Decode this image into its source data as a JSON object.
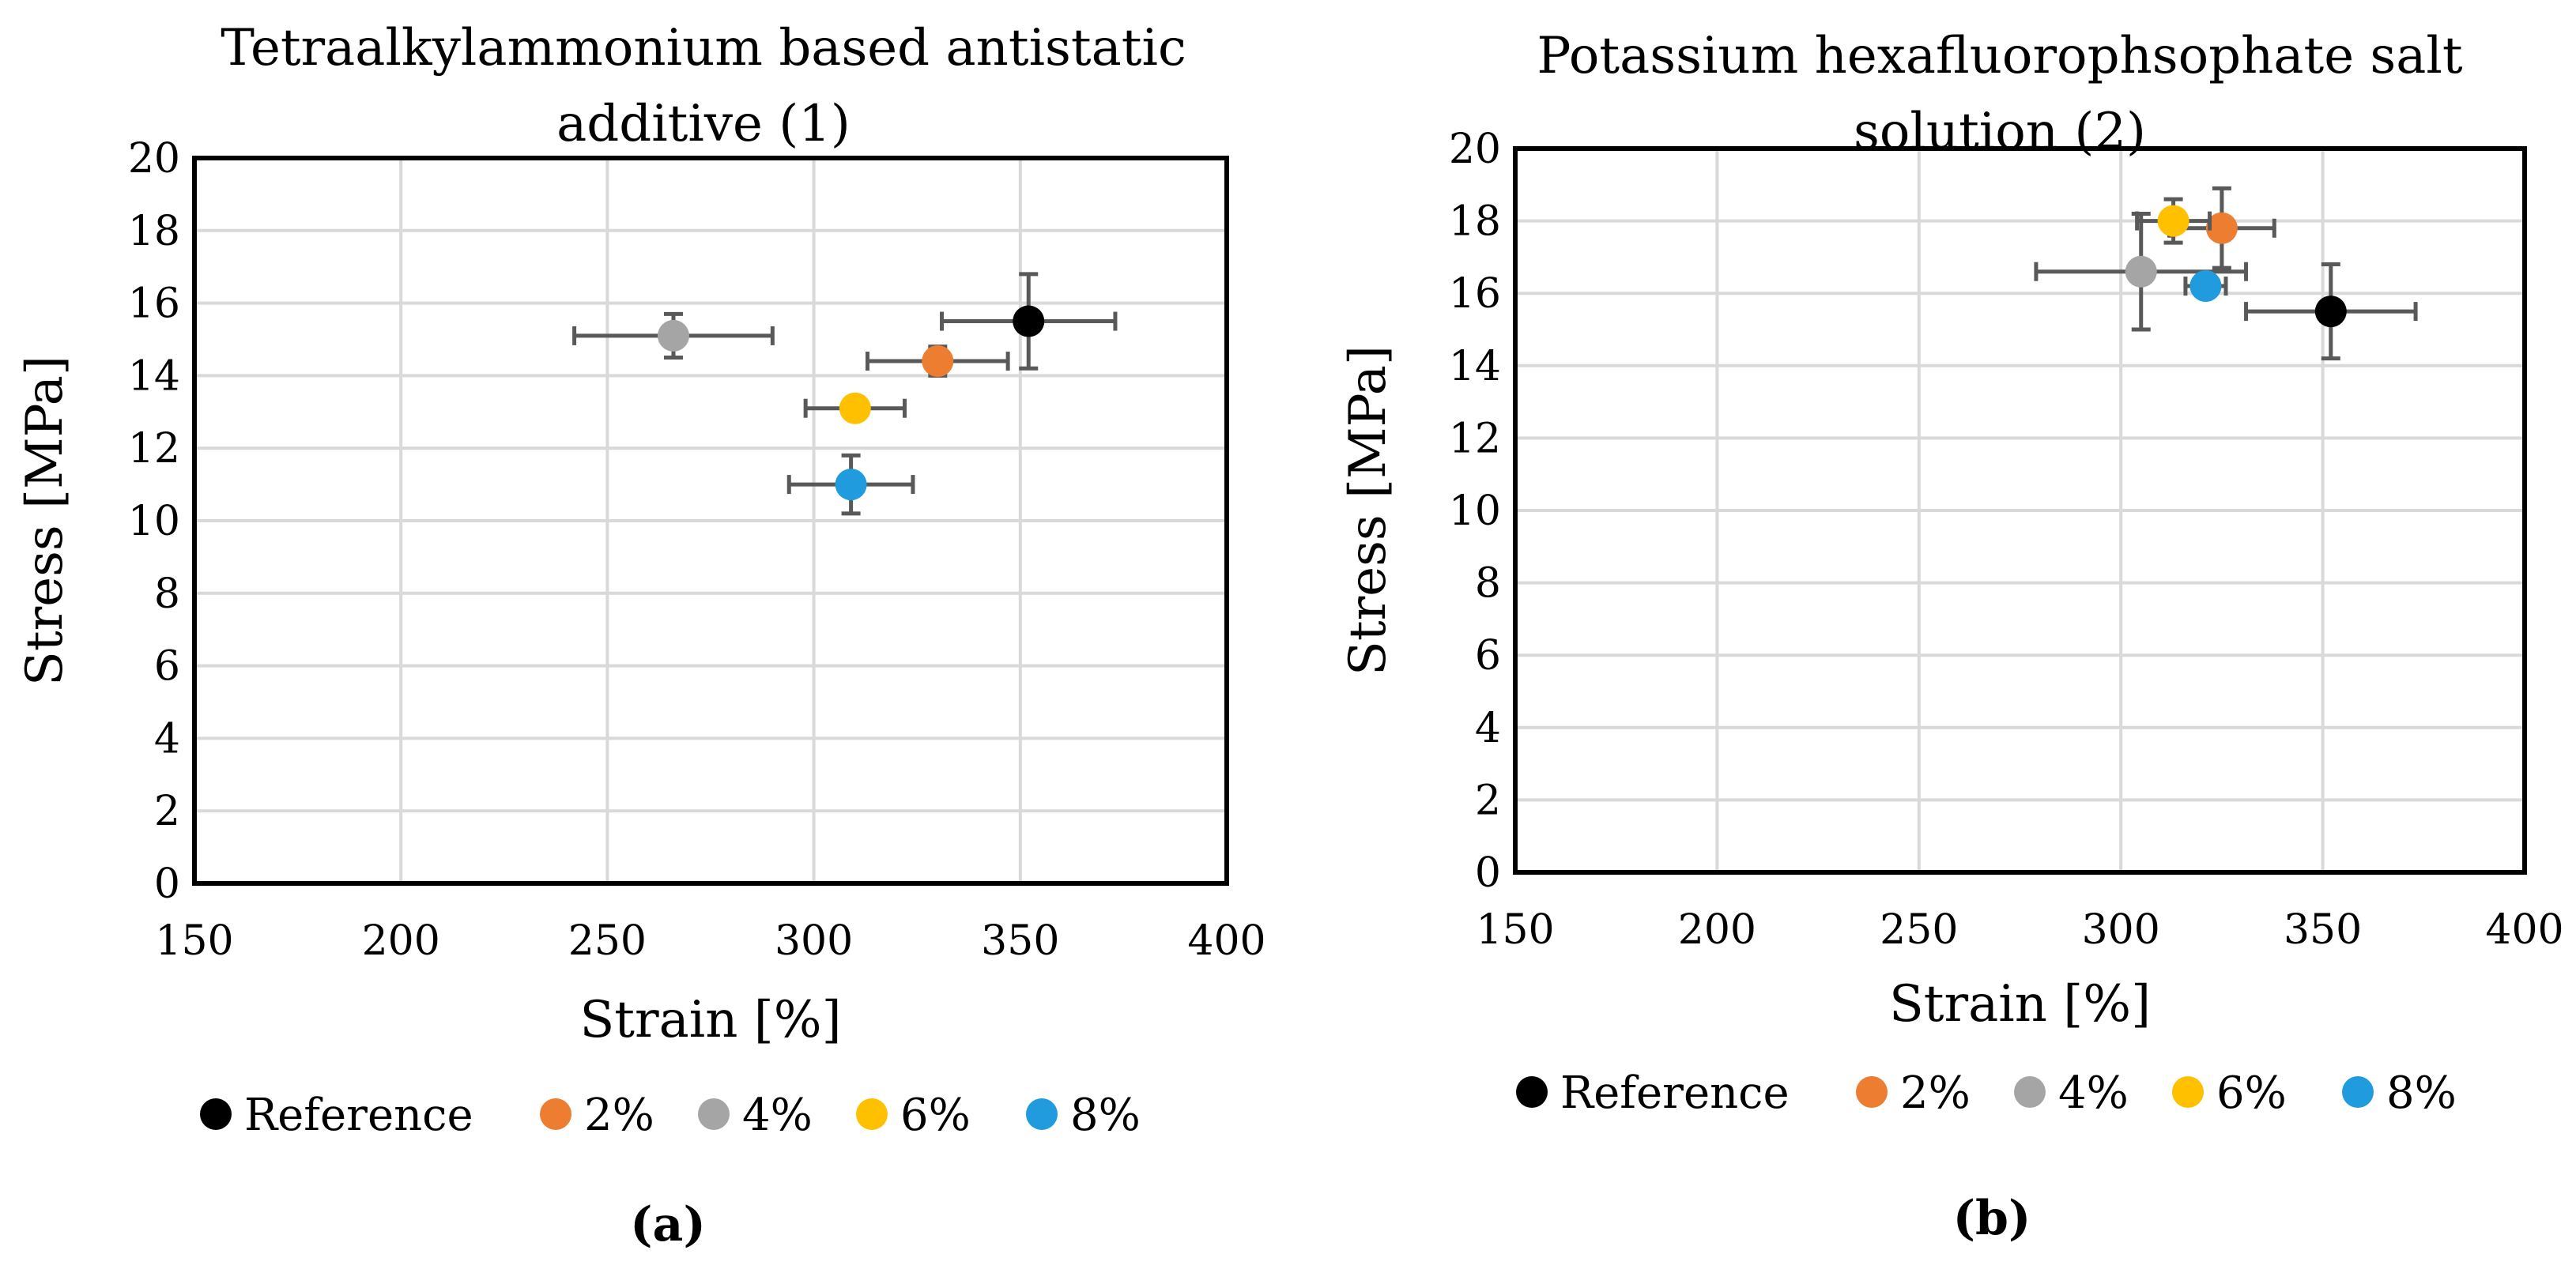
{
  "chart_data": [
    {
      "type": "scatter",
      "title": "Tetraalkylammonium based antistatic additive (1)",
      "title_lines": [
        "Tetraalkylammonium based antistatic",
        "additive (1)"
      ],
      "xlabel": "Strain [%]",
      "ylabel": "Stress [MPa]",
      "xlim": [
        150,
        400
      ],
      "ylim": [
        0,
        20
      ],
      "xticks": [
        150,
        200,
        250,
        300,
        350,
        400
      ],
      "yticks": [
        0,
        2,
        4,
        6,
        8,
        10,
        12,
        14,
        16,
        18,
        20
      ],
      "grid": true,
      "caption": "(a)",
      "series": [
        {
          "name": "Reference",
          "color": "#000000",
          "x": 352,
          "y": 15.5,
          "xerr": 21,
          "yerr": 1.3
        },
        {
          "name": "2%",
          "color": "#ED7D31",
          "x": 330,
          "y": 14.4,
          "xerr": 17,
          "yerr": 0.4
        },
        {
          "name": "4%",
          "color": "#A5A5A5",
          "x": 266,
          "y": 15.1,
          "xerr": 24,
          "yerr": 0.6
        },
        {
          "name": "6%",
          "color": "#FFC000",
          "x": 310,
          "y": 13.1,
          "xerr": 12,
          "yerr": 0.3
        },
        {
          "name": "8%",
          "color": "#1F9BDE",
          "x": 309,
          "y": 11.0,
          "xerr": 15,
          "yerr": 0.8
        }
      ]
    },
    {
      "type": "scatter",
      "title": "Potassium hexafluorophsophate salt solution (2)",
      "title_lines": [
        "Potassium hexafluorophsophate salt",
        "solution (2)"
      ],
      "xlabel": "Strain [%]",
      "ylabel": "Stress [MPa]",
      "xlim": [
        150,
        400
      ],
      "ylim": [
        0,
        20
      ],
      "xticks": [
        150,
        200,
        250,
        300,
        350,
        400
      ],
      "yticks": [
        0,
        2,
        4,
        6,
        8,
        10,
        12,
        14,
        16,
        18,
        20
      ],
      "grid": true,
      "caption": "(b)",
      "series": [
        {
          "name": "Reference",
          "color": "#000000",
          "x": 352,
          "y": 15.5,
          "xerr": 21,
          "yerr": 1.3
        },
        {
          "name": "2%",
          "color": "#ED7D31",
          "x": 325,
          "y": 17.8,
          "xerr": 13,
          "yerr": 1.1
        },
        {
          "name": "4%",
          "color": "#A5A5A5",
          "x": 305,
          "y": 16.6,
          "xerr": 26,
          "yerr": 1.6
        },
        {
          "name": "6%",
          "color": "#FFC000",
          "x": 313,
          "y": 18.0,
          "xerr": 9,
          "yerr": 0.6
        },
        {
          "name": "8%",
          "color": "#1F9BDE",
          "x": 321,
          "y": 16.2,
          "xerr": 5,
          "yerr": 0.3
        }
      ]
    }
  ]
}
